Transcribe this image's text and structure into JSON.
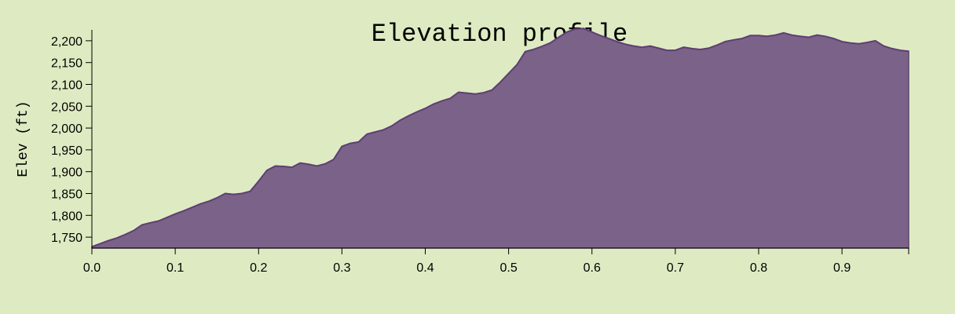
{
  "chart_data": {
    "type": "area",
    "title": "Elevation profile",
    "xlabel": "",
    "ylabel": "Elev (ft)",
    "xlim": [
      0,
      0.98
    ],
    "ylim": [
      1725,
      2225
    ],
    "x_ticks": [
      0.0,
      0.1,
      0.2,
      0.3,
      0.4,
      0.5,
      0.6,
      0.7,
      0.8,
      0.9
    ],
    "x_tick_labels": [
      "0.0",
      "0.1",
      "0.2",
      "0.3",
      "0.4",
      "0.5",
      "0.6",
      "0.7",
      "0.8",
      "0.9"
    ],
    "y_ticks": [
      1750,
      1800,
      1850,
      1900,
      1950,
      2000,
      2050,
      2100,
      2150,
      2200
    ],
    "y_tick_labels": [
      "1,750",
      "1,800",
      "1,850",
      "1,900",
      "1,950",
      "2,000",
      "2,050",
      "2,100",
      "2,150",
      "2,200"
    ],
    "grid": false,
    "fill_color": "#7b6288",
    "line_color": "#5e3f73",
    "background_color": "#deebc2",
    "series": [
      {
        "x": [
          0.0,
          0.01,
          0.02,
          0.03,
          0.04,
          0.05,
          0.06,
          0.07,
          0.08,
          0.09,
          0.1,
          0.11,
          0.12,
          0.13,
          0.14,
          0.15,
          0.16,
          0.17,
          0.18,
          0.19,
          0.2,
          0.21,
          0.22,
          0.23,
          0.24,
          0.25,
          0.26,
          0.27,
          0.28,
          0.29,
          0.3,
          0.31,
          0.32,
          0.33,
          0.34,
          0.35,
          0.36,
          0.37,
          0.38,
          0.39,
          0.4,
          0.41,
          0.42,
          0.43,
          0.44,
          0.45,
          0.46,
          0.47,
          0.48,
          0.49,
          0.5,
          0.51,
          0.52,
          0.53,
          0.54,
          0.55,
          0.56,
          0.57,
          0.58,
          0.59,
          0.6,
          0.61,
          0.62,
          0.63,
          0.64,
          0.65,
          0.66,
          0.67,
          0.68,
          0.69,
          0.7,
          0.71,
          0.72,
          0.73,
          0.74,
          0.75,
          0.76,
          0.77,
          0.78,
          0.79,
          0.8,
          0.81,
          0.82,
          0.83,
          0.84,
          0.85,
          0.86,
          0.87,
          0.88,
          0.89,
          0.9,
          0.91,
          0.92,
          0.93,
          0.94,
          0.95,
          0.96,
          0.97,
          0.98
        ],
        "values": [
          1728,
          1735,
          1742,
          1748,
          1756,
          1765,
          1778,
          1783,
          1787,
          1795,
          1803,
          1810,
          1818,
          1826,
          1832,
          1840,
          1850,
          1848,
          1850,
          1855,
          1878,
          1903,
          1913,
          1912,
          1910,
          1920,
          1917,
          1913,
          1918,
          1928,
          1958,
          1965,
          1968,
          1986,
          1991,
          1996,
          2005,
          2018,
          2028,
          2037,
          2045,
          2055,
          2062,
          2068,
          2082,
          2080,
          2078,
          2081,
          2087,
          2105,
          2125,
          2145,
          2175,
          2180,
          2187,
          2195,
          2208,
          2220,
          2227,
          2228,
          2220,
          2212,
          2205,
          2198,
          2192,
          2188,
          2185,
          2188,
          2183,
          2178,
          2178,
          2185,
          2182,
          2180,
          2183,
          2190,
          2198,
          2202,
          2205,
          2212,
          2212,
          2210,
          2213,
          2218,
          2213,
          2210,
          2208,
          2213,
          2210,
          2205,
          2198,
          2195,
          2193,
          2196,
          2200,
          2188,
          2182,
          2178,
          2176
        ]
      }
    ]
  }
}
